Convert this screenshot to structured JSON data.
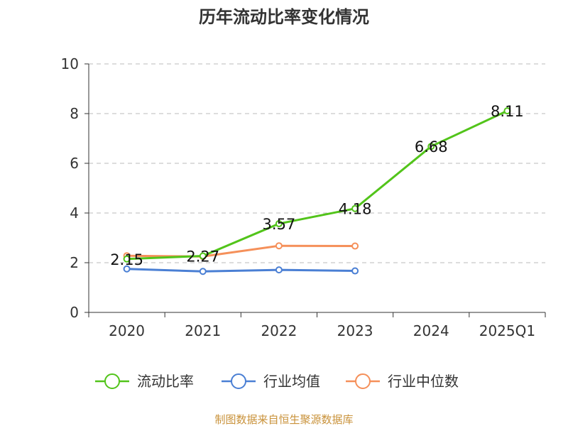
{
  "chart_data": {
    "type": "line",
    "title": "历年流动比率变化情况",
    "categories": [
      "2020",
      "2021",
      "2022",
      "2023",
      "2024",
      "2025Q1"
    ],
    "ylim": [
      0,
      10
    ],
    "yticks": [
      "0",
      "2",
      "4",
      "6",
      "8",
      "10"
    ],
    "grid": true,
    "legend_position": "bottom",
    "series": [
      {
        "name": "流动比率",
        "color": "#52c41a",
        "values": [
          2.15,
          2.27,
          3.57,
          4.18,
          6.68,
          8.11
        ],
        "labels": [
          "2.15",
          "2.27",
          "3.57",
          "4.18",
          "6.68",
          "8.11"
        ]
      },
      {
        "name": "行业均值",
        "color": "#4a7fd4",
        "values": [
          1.75,
          1.65,
          1.71,
          1.67,
          null,
          null
        ]
      },
      {
        "name": "行业中位数",
        "color": "#f5905a",
        "values": [
          2.28,
          2.25,
          2.68,
          2.67,
          null,
          null
        ]
      }
    ]
  },
  "source": {
    "text": "制图数据来自恒生聚源数据库",
    "color": "#c9923a"
  }
}
